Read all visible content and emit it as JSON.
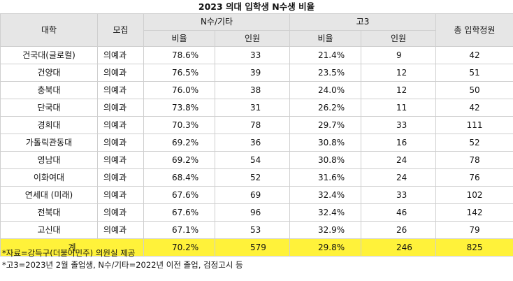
{
  "title": "2023 의대 입학생 N수생 비율",
  "header": {
    "university": "대학",
    "recruit": "모집",
    "group_nsu": "N수/기타",
    "group_go3": "고3",
    "ratio": "비율",
    "count": "인원",
    "total": "총 입학정원"
  },
  "rows": [
    {
      "univ": "건국대(글로컬)",
      "type": "의예과",
      "n_ratio": "78.6%",
      "n_count": "33",
      "g_ratio": "21.4%",
      "g_count": "9",
      "total": "42"
    },
    {
      "univ": "건양대",
      "type": "의예과",
      "n_ratio": "76.5%",
      "n_count": "39",
      "g_ratio": "23.5%",
      "g_count": "12",
      "total": "51"
    },
    {
      "univ": "충북대",
      "type": "의예과",
      "n_ratio": "76.0%",
      "n_count": "38",
      "g_ratio": "24.0%",
      "g_count": "12",
      "total": "50"
    },
    {
      "univ": "단국대",
      "type": "의예과",
      "n_ratio": "73.8%",
      "n_count": "31",
      "g_ratio": "26.2%",
      "g_count": "11",
      "total": "42"
    },
    {
      "univ": "경희대",
      "type": "의예과",
      "n_ratio": "70.3%",
      "n_count": "78",
      "g_ratio": "29.7%",
      "g_count": "33",
      "total": "111"
    },
    {
      "univ": "가톨릭관동대",
      "type": "의예과",
      "n_ratio": "69.2%",
      "n_count": "36",
      "g_ratio": "30.8%",
      "g_count": "16",
      "total": "52"
    },
    {
      "univ": "영남대",
      "type": "의예과",
      "n_ratio": "69.2%",
      "n_count": "54",
      "g_ratio": "30.8%",
      "g_count": "24",
      "total": "78"
    },
    {
      "univ": "이화여대",
      "type": "의예과",
      "n_ratio": "68.4%",
      "n_count": "52",
      "g_ratio": "31.6%",
      "g_count": "24",
      "total": "76"
    },
    {
      "univ": "연세대 (미래)",
      "type": "의예과",
      "n_ratio": "67.6%",
      "n_count": "69",
      "g_ratio": "32.4%",
      "g_count": "33",
      "total": "102"
    },
    {
      "univ": "전북대",
      "type": "의예과",
      "n_ratio": "67.6%",
      "n_count": "96",
      "g_ratio": "32.4%",
      "g_count": "46",
      "total": "142"
    },
    {
      "univ": "고신대",
      "type": "의예과",
      "n_ratio": "67.1%",
      "n_count": "53",
      "g_ratio": "32.9%",
      "g_count": "26",
      "total": "79"
    }
  ],
  "total_row": {
    "label": "계",
    "n_ratio": "70.2%",
    "n_count": "579",
    "g_ratio": "29.8%",
    "g_count": "246",
    "total": "825"
  },
  "notes": [
    "*자료=강득구(더불어민주) 의원실 제공",
    "*고3=2023년 2월 졸업생, N수/기타=2022년 이전 졸업, 검정고시 등"
  ],
  "colors": {
    "header_bg": "#e6e6e6",
    "total_bg": "#fff23a",
    "border": "#cfcfcf"
  }
}
